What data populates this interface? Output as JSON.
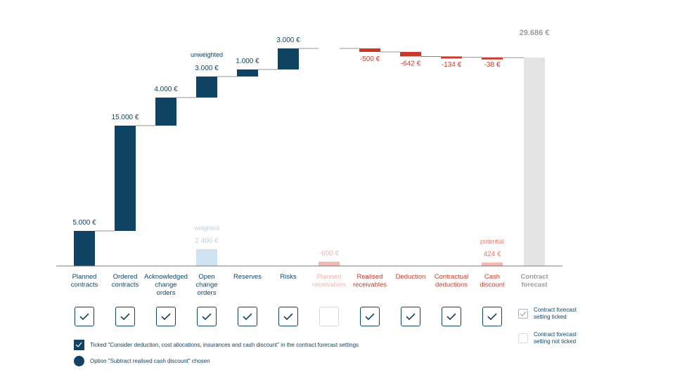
{
  "chart_data": {
    "type": "waterfall",
    "unit": "€",
    "categories": [
      {
        "key": "planned-contracts",
        "label": [
          "Planned",
          "contracts"
        ],
        "value": 5000,
        "label_text": "5.000 €",
        "color": "#0f4363",
        "label_color": "#0f4363",
        "ticked": true
      },
      {
        "key": "ordered-contracts",
        "label": [
          "Ordered",
          "contracts"
        ],
        "value": 15000,
        "label_text": "15.000 €",
        "color": "#0f4363",
        "label_color": "#0f4363",
        "ticked": true
      },
      {
        "key": "acknowledged-change-orders",
        "label": [
          "Acknowledged",
          "change",
          "orders"
        ],
        "value": 4000,
        "label_text": "4.000 €",
        "color": "#0f4363",
        "label_color": "#0f4363",
        "ticked": true
      },
      {
        "key": "open-change-orders",
        "label": [
          "Open",
          "change",
          "orders"
        ],
        "value": 3000,
        "label_text": "3.000 €",
        "note": "unweighted",
        "color": "#0f4363",
        "label_color": "#0f4363",
        "ticked": true,
        "alt": {
          "value": 2400,
          "label_text": "2.400 €",
          "note": "weighted",
          "color": "#cfe2f1",
          "label_color": "#b9d3e8"
        }
      },
      {
        "key": "reserves",
        "label": [
          "Reserves"
        ],
        "value": 1000,
        "label_text": "1.000 €",
        "color": "#0f4363",
        "label_color": "#0f4363",
        "ticked": true
      },
      {
        "key": "risks",
        "label": [
          "Risks"
        ],
        "value": 3000,
        "label_text": "3.000 €",
        "color": "#0f4363",
        "label_color": "#0f4363",
        "ticked": true
      },
      {
        "key": "planned-receivables",
        "label": [
          "Planned",
          "receivables"
        ],
        "value": 0,
        "label_text": "",
        "color": "#f3b7b0",
        "label_color": "#f0b3ab",
        "ticked": false,
        "alt": {
          "value": -600,
          "label_text": "-600 €",
          "color": "#f3b7b0",
          "label_color": "#f0b3ab"
        }
      },
      {
        "key": "realised-receivables",
        "label": [
          "Realised",
          "receivables"
        ],
        "value": -500,
        "label_text": "-500 €",
        "color": "#c9392b",
        "label_color": "#c9392b",
        "ticked": true
      },
      {
        "key": "deduction",
        "label": [
          "Deduction"
        ],
        "value": -642,
        "label_text": "-642 €",
        "color": "#c9392b",
        "label_color": "#c9392b",
        "ticked": true
      },
      {
        "key": "contractual-deductions",
        "label": [
          "Contractual",
          "deductions"
        ],
        "value": -134,
        "label_text": "-134 €",
        "color": "#c9392b",
        "label_color": "#c9392b",
        "ticked": true
      },
      {
        "key": "cash-discount",
        "label": [
          "Cash",
          "discount"
        ],
        "value": -38,
        "label_text": "-38 €",
        "color": "#c9392b",
        "label_color": "#c9392b",
        "ticked": true,
        "alt": {
          "value": 424,
          "label_text": "424 €",
          "note": "potential",
          "color": "#f3b7b0",
          "label_color": "#e07a6c"
        }
      }
    ],
    "total": {
      "key": "contract-forecast",
      "label": [
        "Contract",
        "forecast"
      ],
      "value": 29686,
      "label_text": "29.686 €",
      "color": "#e3e3e3",
      "label_color": "#9a9a9a"
    },
    "ylim": [
      0,
      30000
    ]
  },
  "legend": {
    "ticked": [
      "Contract forecast",
      "setting ticked"
    ],
    "not_ticked": [
      "Contract forecast",
      "setting not ticked"
    ]
  },
  "notes": {
    "ticked_setting": "Ticked \"Consider deduction, cost allocations, insurances and cash discount\" in the contract forecast settings",
    "option_chosen": "Option \"Subtract realised cash discount\" chosen"
  },
  "colors": {
    "navy": "#0f4363",
    "red": "#c9392b",
    "light_red": "#f3b7b0",
    "light_blue": "#cfe2f1",
    "grey": "#e3e3e3"
  }
}
